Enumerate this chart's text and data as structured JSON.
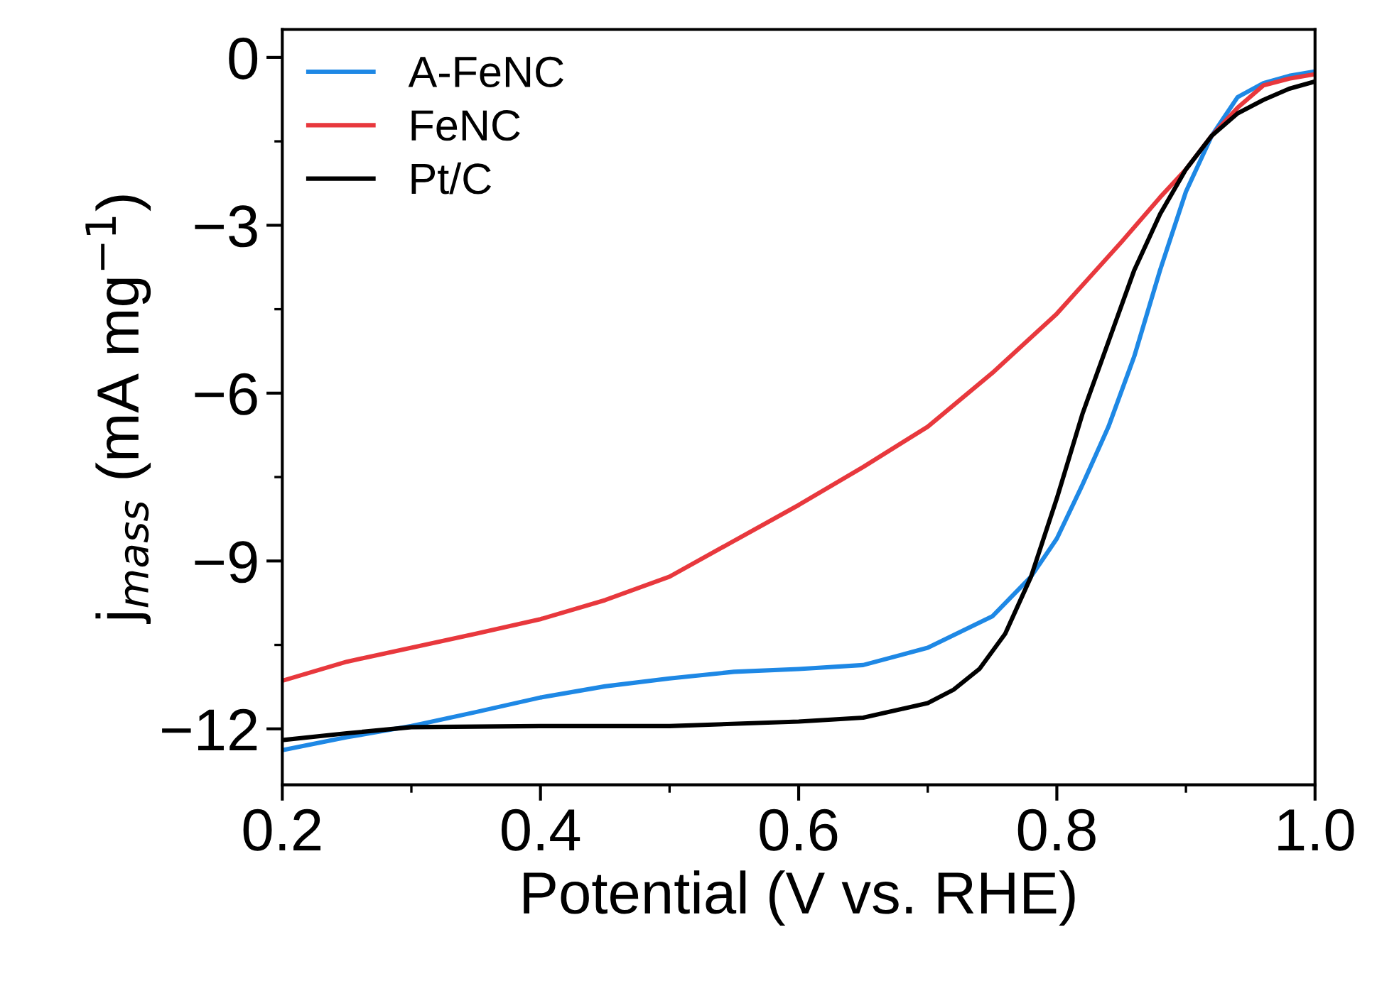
{
  "chart_data": {
    "type": "line",
    "xlabel": "Potential (V vs. RHE)",
    "ylabel": "j$_{mass}$ (mA mg$^{−1}$)",
    "xlim": [
      0.2,
      1.0
    ],
    "xticks": [
      {
        "value": 0.2,
        "label": "0.2"
      },
      {
        "value": 0.4,
        "label": "0.4"
      },
      {
        "value": 0.6,
        "label": "0.6"
      },
      {
        "value": 0.8,
        "label": "0.8"
      },
      {
        "value": 1.0,
        "label": "1.0"
      }
    ],
    "ylim": [
      -13,
      0.5
    ],
    "yticks": [
      -12,
      -9,
      -6,
      -3,
      0
    ],
    "grid": false,
    "legend": "top left",
    "line_style": "solid",
    "marker": "none",
    "series": [
      {
        "name": "A-FeNC",
        "color": "#1e88e5",
        "x": [
          0.2,
          0.25,
          0.3,
          0.35,
          0.4,
          0.45,
          0.5,
          0.55,
          0.6,
          0.65,
          0.7,
          0.75,
          0.78,
          0.8,
          0.82,
          0.84,
          0.86,
          0.88,
          0.9,
          0.92,
          0.94,
          0.96,
          0.98,
          1.0
        ],
        "values": [
          -12.38,
          -12.15,
          -11.95,
          -11.7,
          -11.44,
          -11.24,
          -11.1,
          -10.98,
          -10.93,
          -10.86,
          -10.55,
          -9.99,
          -9.28,
          -8.6,
          -7.63,
          -6.6,
          -5.34,
          -3.8,
          -2.4,
          -1.4,
          -0.71,
          -0.46,
          -0.33,
          -0.25
        ]
      },
      {
        "name": "FeNC",
        "color": "#e8383d",
        "x": [
          0.2,
          0.25,
          0.3,
          0.35,
          0.4,
          0.45,
          0.5,
          0.55,
          0.6,
          0.65,
          0.7,
          0.75,
          0.8,
          0.85,
          0.88,
          0.9,
          0.92,
          0.94,
          0.96,
          0.98,
          1.0
        ],
        "values": [
          -11.14,
          -10.8,
          -10.55,
          -10.3,
          -10.04,
          -9.7,
          -9.28,
          -8.64,
          -8.0,
          -7.32,
          -6.6,
          -5.64,
          -4.58,
          -3.3,
          -2.5,
          -2.0,
          -1.4,
          -0.9,
          -0.5,
          -0.38,
          -0.3
        ]
      },
      {
        "name": "Pt/C",
        "color": "#000000",
        "x": [
          0.2,
          0.25,
          0.3,
          0.4,
          0.5,
          0.6,
          0.65,
          0.7,
          0.72,
          0.74,
          0.76,
          0.78,
          0.8,
          0.82,
          0.84,
          0.86,
          0.88,
          0.9,
          0.92,
          0.94,
          0.96,
          0.98,
          1.0
        ],
        "values": [
          -12.2,
          -12.08,
          -11.97,
          -11.95,
          -11.95,
          -11.87,
          -11.8,
          -11.54,
          -11.3,
          -10.93,
          -10.3,
          -9.28,
          -7.88,
          -6.36,
          -5.08,
          -3.8,
          -2.8,
          -2.0,
          -1.4,
          -1.0,
          -0.76,
          -0.56,
          -0.43
        ]
      }
    ]
  }
}
